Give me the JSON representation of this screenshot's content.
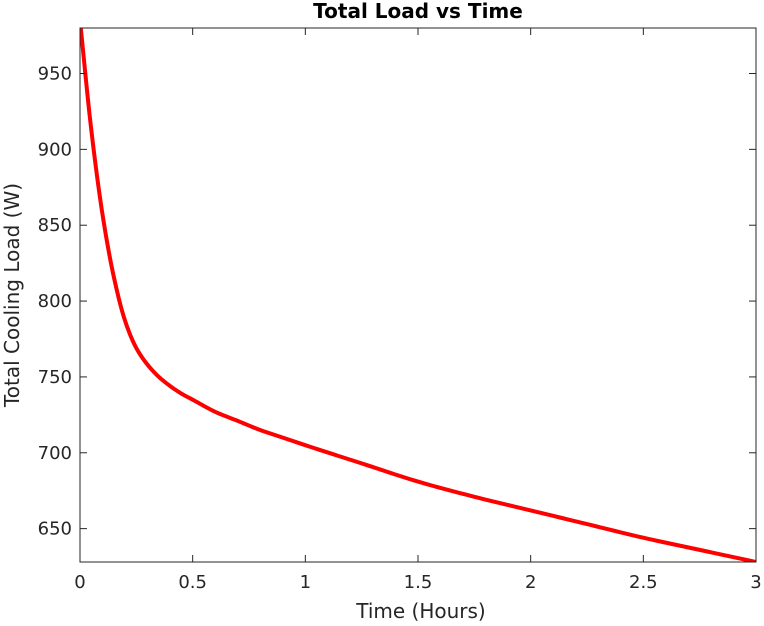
{
  "chart_data": {
    "type": "line",
    "title": "Total Load vs Time",
    "xlabel": "Time (Hours)",
    "ylabel": "Total Cooling Load (W)",
    "xlim": [
      0,
      3
    ],
    "ylim": [
      628,
      980
    ],
    "xticks": [
      0,
      0.5,
      1,
      1.5,
      2,
      2.5,
      3
    ],
    "xtick_labels": [
      "0",
      "0.5",
      "1",
      "1.5",
      "2",
      "2.5",
      "3"
    ],
    "yticks": [
      650,
      700,
      750,
      800,
      850,
      900,
      950
    ],
    "ytick_labels": [
      "650",
      "700",
      "750",
      "800",
      "850",
      "900",
      "950"
    ],
    "grid": false,
    "legend": "none",
    "series": [
      {
        "color": "#ff0000",
        "x": [
          0,
          0.05,
          0.1,
          0.15,
          0.2,
          0.25,
          0.3,
          0.35,
          0.4,
          0.45,
          0.5,
          0.6,
          0.7,
          0.8,
          0.9,
          1.0,
          1.25,
          1.5,
          1.75,
          2.0,
          2.25,
          2.5,
          2.75,
          3.0
        ],
        "y": [
          985,
          913,
          857,
          816,
          787,
          769,
          758,
          750,
          744,
          739,
          735,
          727,
          721,
          715,
          710,
          705,
          693,
          681,
          671,
          662,
          653,
          644,
          636,
          628
        ]
      }
    ]
  }
}
